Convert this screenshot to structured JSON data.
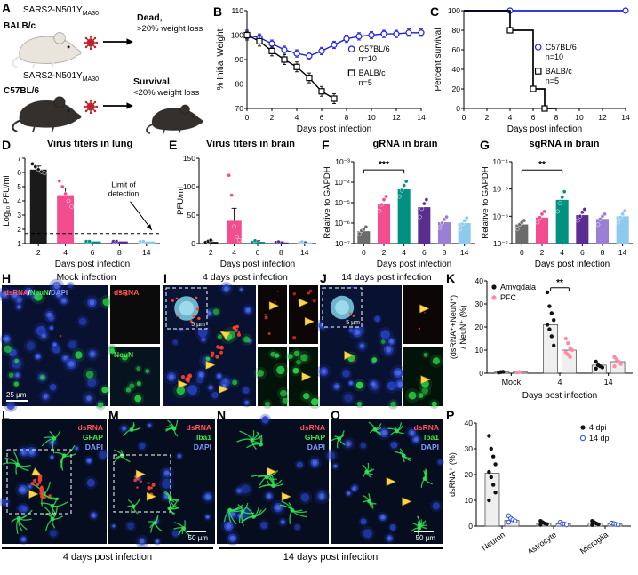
{
  "panel_labels": {
    "A": "A",
    "B": "B",
    "C": "C",
    "D": "D",
    "E": "E",
    "F": "F",
    "G": "G",
    "H": "H",
    "I": "I",
    "J": "J",
    "K": "K",
    "L": "L",
    "M": "M",
    "N": "N",
    "O": "O",
    "P": "P"
  },
  "panelA": {
    "rows": [
      {
        "virus": "SARS2-N501Y",
        "virus_sub": "MA30",
        "strain": "BALB/c",
        "outcome": "Dead,",
        "outcome_detail": ">20% weight loss"
      },
      {
        "virus": "SARS2-N501Y",
        "virus_sub": "MA30",
        "strain": "C57BL/6",
        "outcome": "Survival,",
        "outcome_detail": "<20% weight loss"
      }
    ]
  },
  "chart_data": [
    {
      "id": "B",
      "type": "line",
      "xlabel": "Days post infection",
      "ylabel": "% Initial Weight",
      "xlim": [
        0,
        14
      ],
      "ylim": [
        70,
        110
      ],
      "xticks": [
        0,
        2,
        4,
        6,
        8,
        10,
        12,
        14
      ],
      "yticks": [
        70,
        80,
        90,
        100,
        110
      ],
      "series": [
        {
          "name": "C57BL/6",
          "n_label": "n=10",
          "color": "#1d1de0",
          "marker": "o",
          "filled": false,
          "err": 1.5,
          "x": [
            0,
            1,
            2,
            3,
            4,
            5,
            6,
            7,
            8,
            9,
            10,
            11,
            12,
            13,
            14
          ],
          "y": [
            100,
            99,
            96.5,
            94,
            92.5,
            91.5,
            93.5,
            96,
            98.5,
            99.5,
            100,
            100.5,
            100.5,
            101,
            101
          ]
        },
        {
          "name": "BALB/c",
          "n_label": "n=5",
          "color": "#000000",
          "marker": "s",
          "filled": false,
          "err": 2,
          "x": [
            0,
            1,
            2,
            3,
            4,
            5,
            6,
            7
          ],
          "y": [
            100,
            97.5,
            93.5,
            90,
            87,
            82.5,
            77,
            74
          ]
        }
      ],
      "legend_pos": [
        0.6,
        0.42
      ]
    },
    {
      "id": "C",
      "type": "survival",
      "xlabel": "Days post infection",
      "ylabel": "Percent survival",
      "xlim": [
        0,
        14
      ],
      "ylim": [
        0,
        100
      ],
      "xticks": [
        0,
        2,
        4,
        6,
        8,
        10,
        12,
        14
      ],
      "yticks": [
        0,
        20,
        40,
        60,
        80,
        100
      ],
      "series": [
        {
          "name": "C57BL/6",
          "n_label": "n=10",
          "color": "#1d1de0",
          "marker": "o",
          "steps": [
            [
              0,
              100
            ],
            [
              14,
              100
            ]
          ],
          "marks": [
            [
              4,
              100
            ],
            [
              14,
              100
            ]
          ]
        },
        {
          "name": "BALB/c",
          "n_label": "n=5",
          "color": "#000000",
          "marker": "s",
          "steps": [
            [
              0,
              100
            ],
            [
              4,
              100
            ],
            [
              4,
              80
            ],
            [
              6,
              80
            ],
            [
              6,
              20
            ],
            [
              7,
              20
            ],
            [
              7,
              0
            ],
            [
              8,
              0
            ]
          ],
          "marks": [
            [
              4,
              80
            ],
            [
              6,
              20
            ],
            [
              7,
              0
            ]
          ]
        }
      ],
      "legend_pos": [
        0.46,
        0.4
      ]
    },
    {
      "id": "D",
      "type": "bar",
      "title": "Virus titers in lung",
      "xlabel": "Days post infection",
      "ylabel": "Log₁₀ PFU/ml",
      "categories": [
        "2",
        "4",
        "6",
        "8",
        "14"
      ],
      "values": [
        6.2,
        4.4,
        1.15,
        1.15,
        1.15
      ],
      "errs": [
        0.25,
        0.5,
        0,
        0,
        0
      ],
      "points": [
        [
          6.6,
          6.4,
          6.2,
          6.05,
          5.95
        ],
        [
          5.4,
          5.0,
          4.5,
          4.0,
          3.6
        ],
        [
          1.15,
          1.15
        ],
        [
          1.15,
          1.15
        ],
        [
          1.15,
          1.15
        ]
      ],
      "colors": [
        "#1a1a1a",
        "#f24d8e",
        "#009180",
        "#5c2d91",
        "#8ec9ef"
      ],
      "ylim": [
        1,
        7
      ],
      "yticks": [
        1,
        2,
        3,
        4,
        5,
        6,
        7
      ],
      "hline": 1.7,
      "annotation": {
        "lines": [
          "Limit of",
          "detection"
        ]
      }
    },
    {
      "id": "E",
      "type": "bar",
      "title": "Virus titers in brain",
      "xlabel": "Days post infection",
      "ylabel": "PFU/ml",
      "categories": [
        "2",
        "4",
        "6",
        "8",
        "14"
      ],
      "values": [
        3,
        40,
        3,
        2,
        2
      ],
      "errs": [
        2,
        22,
        2,
        1,
        1
      ],
      "points": [
        [
          2,
          4,
          6
        ],
        [
          120,
          85,
          30,
          12,
          6
        ],
        [
          2,
          5
        ],
        [
          2,
          3
        ],
        [
          1,
          3
        ]
      ],
      "colors": [
        "#1a1a1a",
        "#f24d8e",
        "#009180",
        "#5c2d91",
        "#8ec9ef"
      ],
      "ylim": [
        0,
        150
      ],
      "yticks": [
        0,
        50,
        100,
        150
      ]
    },
    {
      "id": "F",
      "type": "bar",
      "title": "gRNA in brain",
      "xlabel": "Days post infection",
      "ylabel": "Relative to GAPDH",
      "yscale": "log",
      "categories": [
        "0",
        "2",
        "4",
        "6",
        "8",
        "14"
      ],
      "values": [
        4e-07,
        9e-06,
        4.5e-05,
        6e-06,
        1.1e-06,
        1e-06
      ],
      "points": [
        [
          3e-07,
          4.2e-07,
          5e-07,
          6.5e-07
        ],
        [
          4e-06,
          8e-06,
          1.4e-05,
          2e-05
        ],
        [
          2e-05,
          4e-05,
          7e-05,
          0.00011
        ],
        [
          2e-06,
          5e-06,
          9e-06,
          1.4e-05
        ],
        [
          6e-07,
          1e-06,
          1.5e-06,
          2e-06
        ],
        [
          5e-07,
          9e-07,
          1.3e-06,
          1.8e-06
        ]
      ],
      "colors": [
        "#6b6b6b",
        "#f24d8e",
        "#009180",
        "#5c2d91",
        "#9b7fd4",
        "#8ec9ef"
      ],
      "ylim": [
        1e-07,
        0.001
      ],
      "yticks": [
        1e-07,
        1e-06,
        1e-05,
        0.0001,
        0.001
      ],
      "ytick_labels": [
        "10⁻⁷",
        "10⁻⁶",
        "10⁻⁵",
        "10⁻⁴",
        "10⁻³"
      ],
      "sig": {
        "i": 0,
        "j": 2,
        "label": "***",
        "y": 0.0004
      }
    },
    {
      "id": "G",
      "type": "bar",
      "title": "sgRNA in brain",
      "xlabel": "Days post infection",
      "ylabel": "Relative to GAPDH",
      "yscale": "log",
      "categories": [
        "0",
        "2",
        "4",
        "6",
        "8",
        "14"
      ],
      "values": [
        5e-07,
        9e-07,
        4e-06,
        1.1e-06,
        8e-07,
        1e-06
      ],
      "points": [
        [
          3.5e-07,
          5e-07,
          6e-07,
          7e-07
        ],
        [
          6e-07,
          9e-07,
          1.2e-06,
          1.5e-06
        ],
        [
          1.5e-06,
          3e-06,
          5e-06,
          8e-06
        ],
        [
          7e-07,
          1e-06,
          1.4e-06,
          1.8e-06
        ],
        [
          5e-07,
          8e-07,
          1e-06,
          1.2e-06
        ],
        [
          6e-07,
          9e-07,
          1.2e-06,
          1.6e-06
        ]
      ],
      "colors": [
        "#6b6b6b",
        "#f24d8e",
        "#009180",
        "#5c2d91",
        "#9b7fd4",
        "#8ec9ef"
      ],
      "ylim": [
        1e-07,
        0.0001
      ],
      "yticks": [
        1e-07,
        1e-06,
        1e-05,
        0.0001
      ],
      "ytick_labels": [
        "10⁻⁷",
        "10⁻⁶",
        "10⁻⁵",
        "10⁻⁴"
      ],
      "sig": {
        "i": 0,
        "j": 2,
        "label": "**",
        "y": 5e-05
      }
    },
    {
      "id": "K",
      "type": "group_scatter",
      "xlabel": "Days post infection",
      "ylabel_lines": [
        "(dsRNA⁺+NeuN⁺)",
        "/ NeuN⁺ (%)"
      ],
      "groups": [
        "Mock",
        "4",
        "14"
      ],
      "ylim": [
        0,
        40
      ],
      "yticks": [
        0,
        10,
        20,
        30,
        40
      ],
      "series": [
        {
          "name": "Amygdala",
          "color": "#111111",
          "open": false,
          "values": [
            [
              0.3,
              0.5,
              0.6
            ],
            [
              35,
              29,
              26,
              23,
              21,
              19,
              16,
              12
            ],
            [
              5,
              3.5,
              3,
              2.5,
              2
            ]
          ]
        },
        {
          "name": "PFC",
          "color": "#ff8da6",
          "open": false,
          "values": [
            [
              0.3,
              0.5
            ],
            [
              15,
              13,
              11,
              10,
              9,
              8,
              7
            ],
            [
              7,
              6,
              5,
              4,
              3
            ]
          ]
        }
      ],
      "bars": [
        [
          0.5,
          0.5
        ],
        [
          21,
          10
        ],
        [
          3.5,
          5
        ]
      ],
      "sig": {
        "group": 1,
        "label": "**",
        "y": 37
      },
      "legend_pos": "top-left"
    },
    {
      "id": "P",
      "type": "group_scatter",
      "ylabel_lines": [
        "dsRNA⁺ (%)"
      ],
      "groups": [
        "Neuron",
        "Astrocyte",
        "Microglia"
      ],
      "rotate_xticks": true,
      "ylim": [
        0,
        40
      ],
      "yticks": [
        0,
        10,
        20,
        30,
        40
      ],
      "series": [
        {
          "name": "4 dpi",
          "color": "#111111",
          "open": false,
          "values": [
            [
              35,
              30,
              27,
              24,
              21,
              19,
              16,
              13,
              10
            ],
            [
              2,
              1.5,
              1,
              0.8,
              0.5
            ],
            [
              2,
              1.5,
              1,
              0.7,
              0.4
            ]
          ]
        },
        {
          "name": "14 dpi",
          "color": "#3a5bd9",
          "open": true,
          "values": [
            [
              4,
              3,
              2.5,
              2,
              1.5
            ],
            [
              1.5,
              1,
              0.8,
              0.5
            ],
            [
              1.2,
              1,
              0.7,
              0.5
            ]
          ]
        }
      ],
      "bars": [
        [
          20.5,
          2.2
        ],
        [
          1.1,
          0.9
        ],
        [
          1.1,
          0.8
        ]
      ],
      "legend_pos": "top-right"
    }
  ],
  "microscopy": {
    "H": {
      "title": "Mock infection",
      "overlay": [
        {
          "t": "dsRNA",
          "c": "#ff5555"
        },
        {
          "t": "/",
          "c": "#ffffff"
        },
        {
          "t": "NeuN",
          "c": "#41e841"
        },
        {
          "t": "/",
          "c": "#ffffff"
        },
        {
          "t": "DAPI",
          "c": "#7b9bff"
        }
      ],
      "scale_bar": "25 µm",
      "inset1_label": "dsRNA",
      "inset1_color": "#ff5555",
      "inset2_label": "NeuN",
      "inset2_color": "#41e841"
    },
    "I": {
      "title": "4 days post infection",
      "inset_scale": "5 µm"
    },
    "J": {
      "title": "14 days post infection",
      "inset_scale": "5 µm"
    },
    "L": {
      "labels": [
        {
          "t": "dsRNA",
          "c": "#ff5555"
        },
        {
          "t": "GFAP",
          "c": "#41e841"
        },
        {
          "t": "DAPI",
          "c": "#7b9bff"
        }
      ]
    },
    "M": {
      "labels": [
        {
          "t": "dsRNA",
          "c": "#ff5555"
        },
        {
          "t": "Iba1",
          "c": "#41e841"
        },
        {
          "t": "DAPI",
          "c": "#7b9bff"
        }
      ],
      "scale_bar": "50 µm"
    },
    "N": {
      "labels": [
        {
          "t": "dsRNA",
          "c": "#ff5555"
        },
        {
          "t": "GFAP",
          "c": "#41e841"
        },
        {
          "t": "DAPI",
          "c": "#7b9bff"
        }
      ]
    },
    "O": {
      "labels": [
        {
          "t": "dsRNA",
          "c": "#ff5555"
        },
        {
          "t": "Iba1",
          "c": "#41e841"
        },
        {
          "t": "DAPI",
          "c": "#7b9bff"
        }
      ],
      "scale_bar": "50 µm"
    },
    "caption_4dpi": "4 days post infection",
    "caption_14dpi": "14 days post infection"
  }
}
